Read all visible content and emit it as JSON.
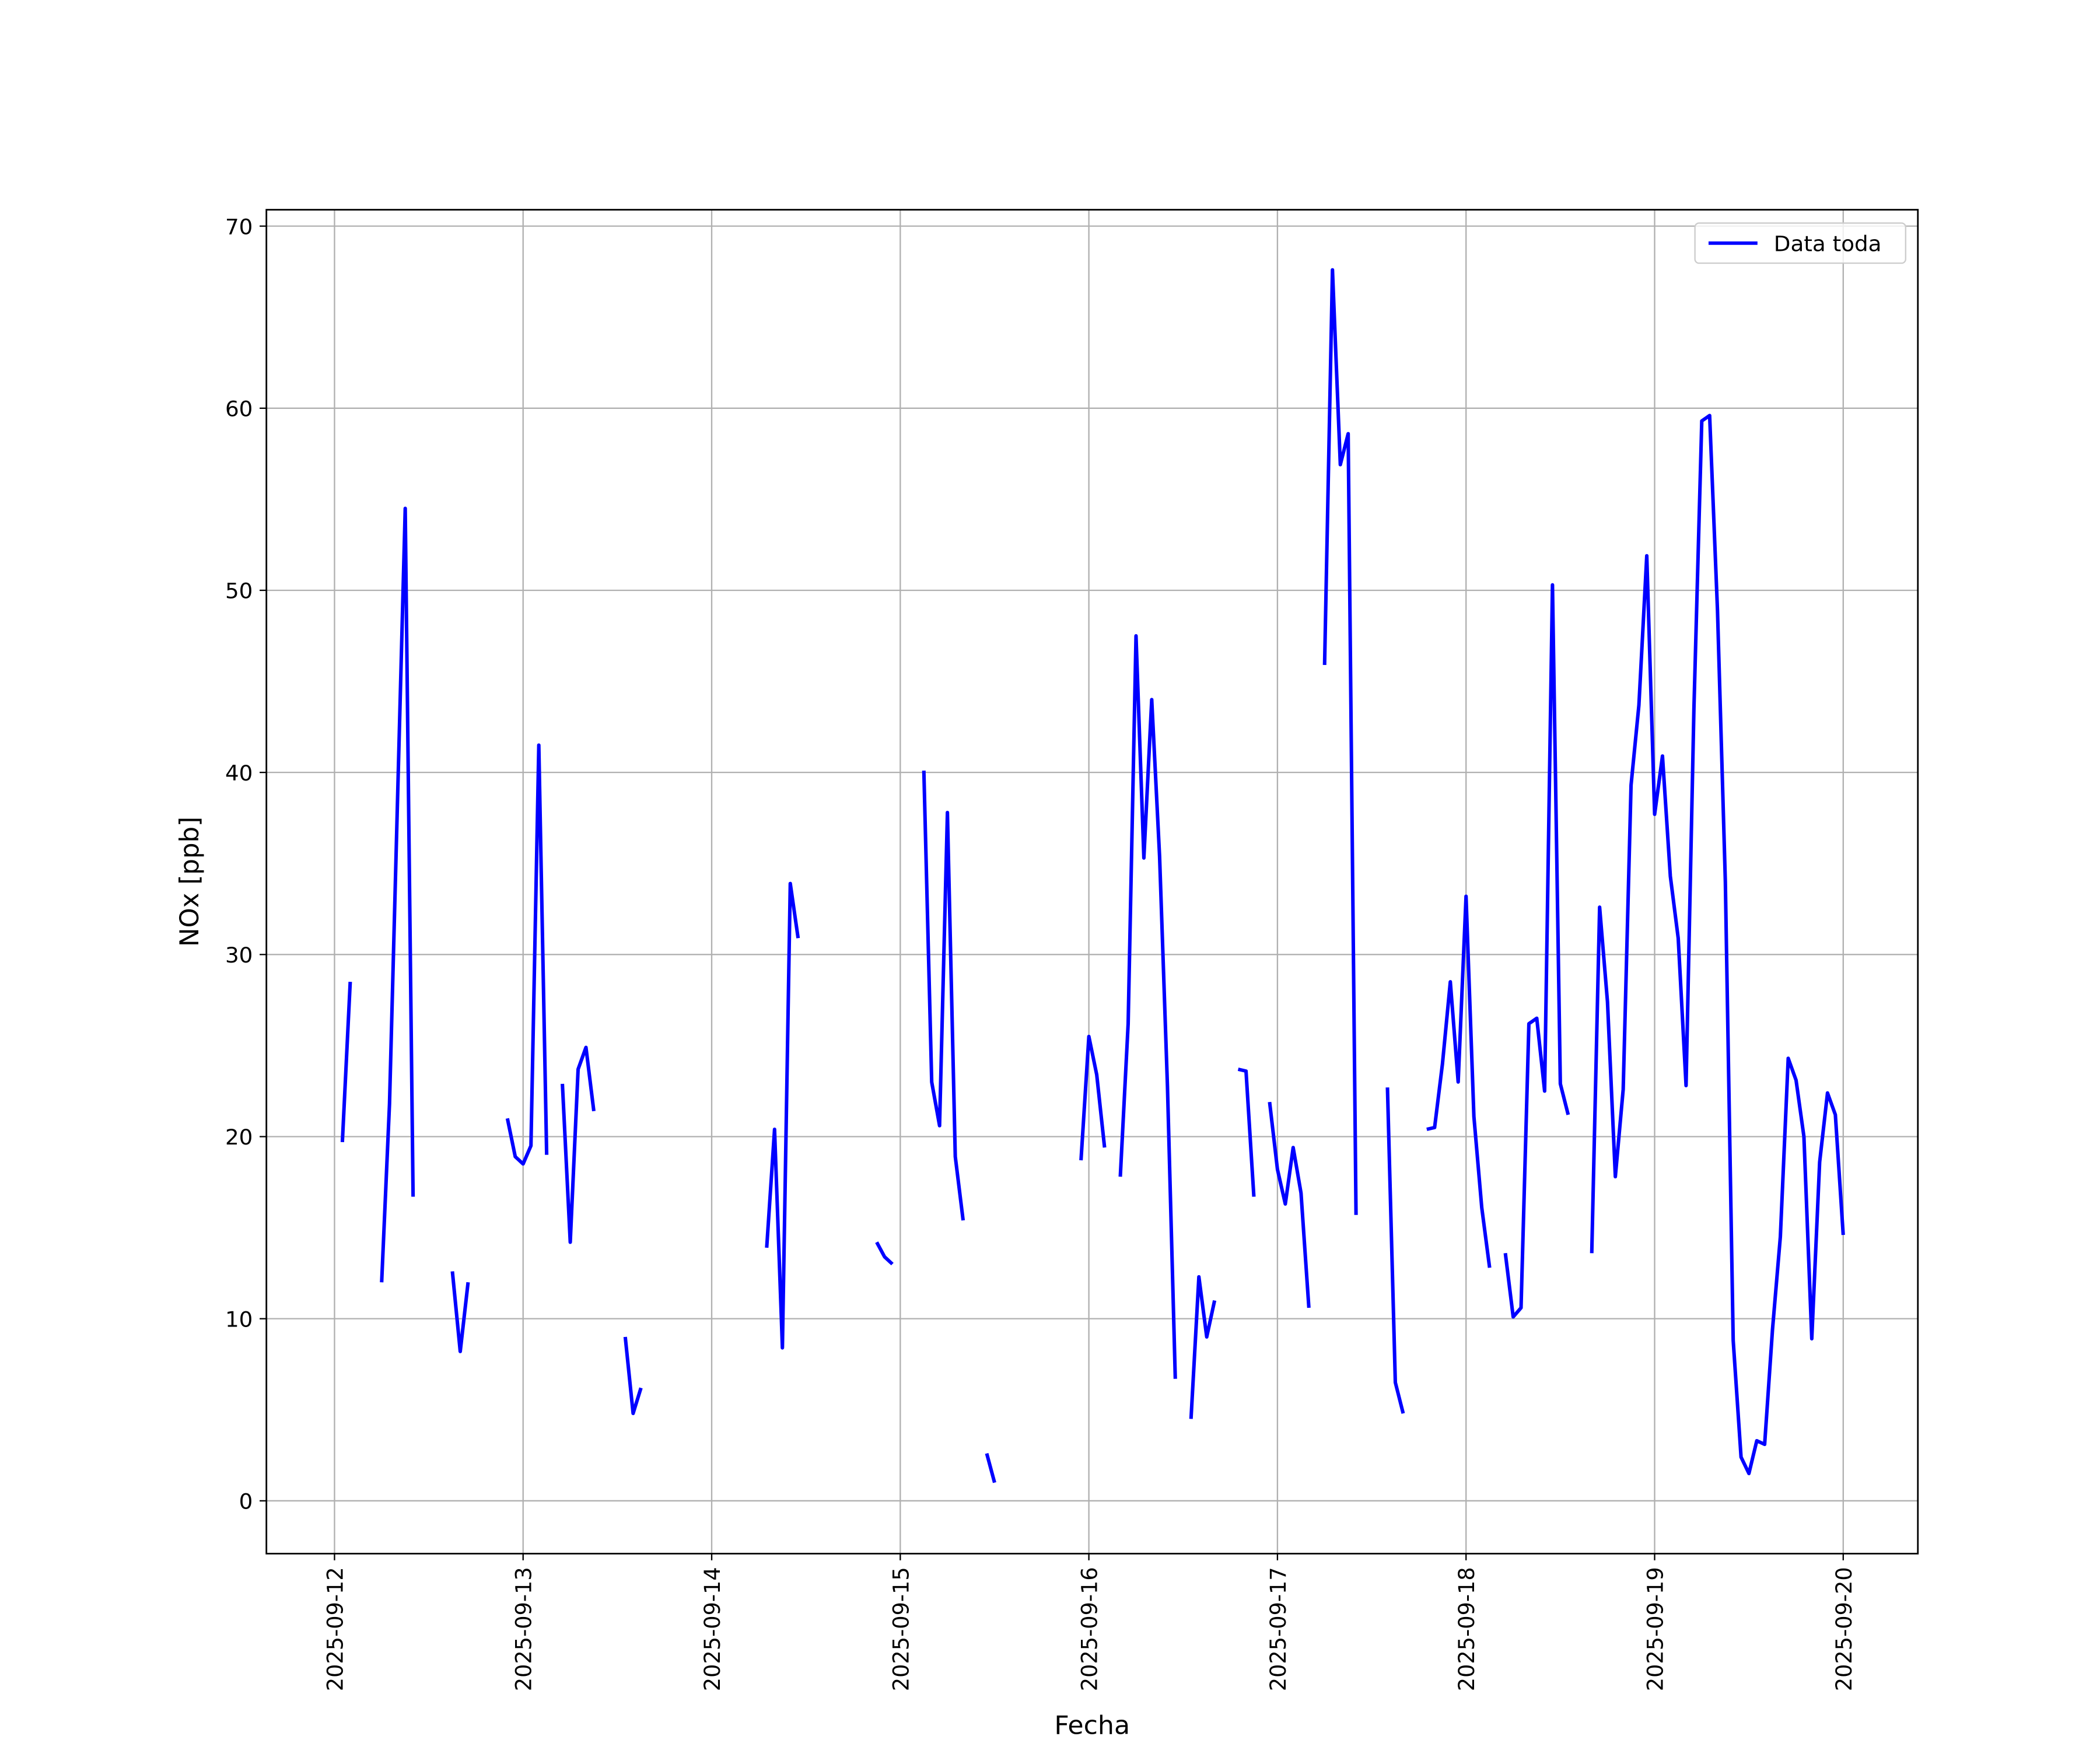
{
  "chart_data": {
    "type": "line",
    "xlabel": "Fecha",
    "ylabel": "NOx [ppb]",
    "x": [
      "2025-09-12 01:00",
      "2025-09-12 02:00",
      "2025-09-12 03:00",
      "2025-09-12 06:00",
      "2025-09-12 07:00",
      "2025-09-12 09:00",
      "2025-09-12 10:00",
      "2025-09-12 11:00",
      "2025-09-12 15:00",
      "2025-09-12 16:00",
      "2025-09-12 17:00",
      "2025-09-12 18:00",
      "2025-09-12 22:00",
      "2025-09-12 23:00",
      "2025-09-13 00:00",
      "2025-09-13 01:00",
      "2025-09-13 02:00",
      "2025-09-13 03:00",
      "2025-09-13 04:00",
      "2025-09-13 05:00",
      "2025-09-13 06:00",
      "2025-09-13 07:00",
      "2025-09-13 08:00",
      "2025-09-13 09:00",
      "2025-09-13 10:00",
      "2025-09-13 13:00",
      "2025-09-13 14:00",
      "2025-09-13 15:00",
      "2025-09-13 16:00",
      "2025-09-14 07:00",
      "2025-09-14 08:00",
      "2025-09-14 09:00",
      "2025-09-14 10:00",
      "2025-09-14 11:00",
      "2025-09-14 12:00",
      "2025-09-14 21:00",
      "2025-09-14 22:00",
      "2025-09-14 23:00",
      "2025-09-15 00:00",
      "2025-09-15 03:00",
      "2025-09-15 04:00",
      "2025-09-15 05:00",
      "2025-09-15 06:00",
      "2025-09-15 07:00",
      "2025-09-15 08:00",
      "2025-09-15 09:00",
      "2025-09-15 11:00",
      "2025-09-15 12:00",
      "2025-09-15 13:00",
      "2025-09-15 23:00",
      "2025-09-16 00:00",
      "2025-09-16 01:00",
      "2025-09-16 02:00",
      "2025-09-16 03:00",
      "2025-09-16 04:00",
      "2025-09-16 05:00",
      "2025-09-16 06:00",
      "2025-09-16 07:00",
      "2025-09-16 08:00",
      "2025-09-16 09:00",
      "2025-09-16 10:00",
      "2025-09-16 11:00",
      "2025-09-16 12:00",
      "2025-09-16 13:00",
      "2025-09-16 14:00",
      "2025-09-16 15:00",
      "2025-09-16 16:00",
      "2025-09-16 17:00",
      "2025-09-16 19:00",
      "2025-09-16 20:00",
      "2025-09-16 21:00",
      "2025-09-16 22:00",
      "2025-09-16 23:00",
      "2025-09-17 00:00",
      "2025-09-17 01:00",
      "2025-09-17 02:00",
      "2025-09-17 03:00",
      "2025-09-17 04:00",
      "2025-09-17 05:00",
      "2025-09-17 06:00",
      "2025-09-17 07:00",
      "2025-09-17 08:00",
      "2025-09-17 09:00",
      "2025-09-17 10:00",
      "2025-09-17 11:00",
      "2025-09-17 14:00",
      "2025-09-17 15:00",
      "2025-09-17 16:00",
      "2025-09-17 17:00",
      "2025-09-17 19:00",
      "2025-09-17 20:00",
      "2025-09-17 21:00",
      "2025-09-17 22:00",
      "2025-09-17 23:00",
      "2025-09-18 00:00",
      "2025-09-18 01:00",
      "2025-09-18 02:00",
      "2025-09-18 03:00",
      "2025-09-18 04:00",
      "2025-09-18 05:00",
      "2025-09-18 06:00",
      "2025-09-18 07:00",
      "2025-09-18 08:00",
      "2025-09-18 09:00",
      "2025-09-18 10:00",
      "2025-09-18 11:00",
      "2025-09-18 12:00",
      "2025-09-18 13:00",
      "2025-09-18 14:00",
      "2025-09-18 16:00",
      "2025-09-18 17:00",
      "2025-09-18 18:00",
      "2025-09-18 19:00",
      "2025-09-18 20:00",
      "2025-09-18 21:00",
      "2025-09-18 22:00",
      "2025-09-18 23:00",
      "2025-09-19 00:00",
      "2025-09-19 01:00",
      "2025-09-19 02:00",
      "2025-09-19 03:00",
      "2025-09-19 04:00",
      "2025-09-19 05:00",
      "2025-09-19 06:00",
      "2025-09-19 07:00",
      "2025-09-19 08:00",
      "2025-09-19 09:00",
      "2025-09-19 10:00",
      "2025-09-19 11:00",
      "2025-09-19 12:00",
      "2025-09-19 13:00",
      "2025-09-19 14:00",
      "2025-09-19 15:00",
      "2025-09-19 16:00",
      "2025-09-19 17:00",
      "2025-09-19 18:00",
      "2025-09-19 19:00",
      "2025-09-19 20:00",
      "2025-09-19 21:00",
      "2025-09-19 22:00",
      "2025-09-19 23:00",
      "2025-09-20 00:00"
    ],
    "series": [
      {
        "name": "Data toda",
        "color": "#0000ff",
        "values": [
          19.7,
          28.5,
          null,
          12.0,
          21.8,
          54.5,
          16.7,
          null,
          12.6,
          8.2,
          12.0,
          null,
          21.0,
          18.9,
          18.5,
          19.5,
          41.5,
          19.0,
          null,
          22.9,
          14.2,
          23.7,
          24.9,
          21.4,
          null,
          9.0,
          4.8,
          6.2,
          null,
          13.9,
          20.4,
          8.4,
          33.9,
          30.9,
          null,
          14.2,
          13.4,
          13.0,
          null,
          40.1,
          23.0,
          20.6,
          37.8,
          18.9,
          15.4,
          null,
          2.6,
          1.0,
          null,
          18.7,
          25.5,
          23.4,
          19.4,
          null,
          17.8,
          26.2,
          47.5,
          35.3,
          44.0,
          35.4,
          22.8,
          6.7,
          null,
          4.5,
          12.3,
          9.0,
          11.0,
          null,
          23.7,
          23.6,
          16.7,
          null,
          21.9,
          18.2,
          16.3,
          19.4,
          16.9,
          10.6,
          null,
          45.9,
          67.6,
          56.9,
          58.6,
          15.7,
          null,
          22.7,
          6.5,
          4.8,
          null,
          20.4,
          20.5,
          24.0,
          28.5,
          23.0,
          33.2,
          21.1,
          16.1,
          12.8,
          null,
          13.6,
          10.1,
          10.6,
          26.2,
          26.5,
          22.5,
          50.3,
          22.9,
          21.2,
          null,
          13.6,
          32.6,
          27.4,
          17.8,
          22.6,
          39.3,
          43.7,
          51.9,
          37.7,
          40.9,
          34.3,
          30.9,
          22.8,
          43.5,
          59.3,
          59.6,
          48.9,
          34.0,
          8.8,
          2.4,
          1.5,
          3.3,
          3.1,
          9.4,
          14.5,
          24.3,
          23.1,
          20.0,
          8.9,
          18.6,
          22.4,
          21.2,
          14.6
        ]
      }
    ],
    "xlim": [
      "2025-09-11 15:20",
      "2025-09-20 09:30"
    ],
    "xticks": [
      "2025-09-12",
      "2025-09-13",
      "2025-09-14",
      "2025-09-15",
      "2025-09-16",
      "2025-09-17",
      "2025-09-18",
      "2025-09-19",
      "2025-09-20"
    ],
    "ylim": [
      -2.9,
      70.9
    ],
    "yticks": [
      0,
      10,
      20,
      30,
      40,
      50,
      60,
      70
    ],
    "grid": true,
    "legend": "upper right"
  }
}
